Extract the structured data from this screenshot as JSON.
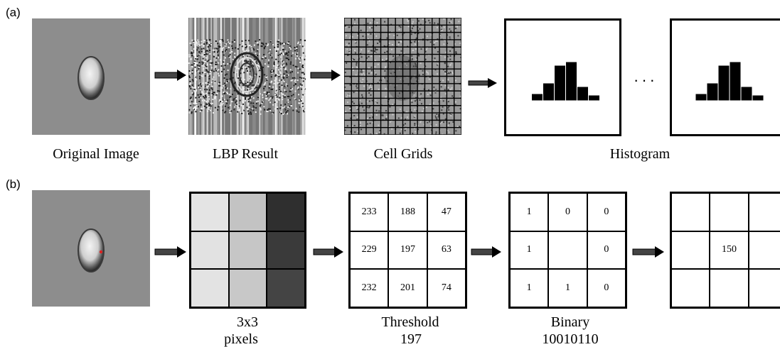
{
  "panel_a": {
    "label": "(a)",
    "captions": {
      "original": "Original Image",
      "lbp": "LBP Result",
      "cells": "Cell Grids",
      "histogram": "Histogram"
    },
    "ellipsis": "···"
  },
  "panel_b": {
    "label": "(b)",
    "gray_grid": {
      "caption_line1": "3x3",
      "caption_line2": "pixels",
      "shades": [
        "#e4e4e4",
        "#c3c3c3",
        "#2f2f2f",
        "#e2e2e2",
        "#c6c6c6",
        "#3a3a3a",
        "#e3e3e3",
        "#c8c8c8",
        "#444444"
      ]
    },
    "value_grid": {
      "cells": [
        "233",
        "188",
        "47",
        "229",
        "197",
        "63",
        "232",
        "201",
        "74"
      ],
      "caption_line1": "Threshold",
      "caption_line2": "197"
    },
    "binary_grid": {
      "cells": [
        "1",
        "0",
        "0",
        "1",
        "",
        "0",
        "1",
        "1",
        "0"
      ],
      "caption_line1": "Binary",
      "caption_line2": "10010110"
    },
    "result_grid": {
      "cells": [
        "",
        "",
        "",
        "",
        "150",
        "",
        "",
        "",
        ""
      ]
    }
  },
  "histogram": {
    "values": [
      1,
      2.5,
      5,
      5.5,
      2,
      0.8
    ]
  }
}
